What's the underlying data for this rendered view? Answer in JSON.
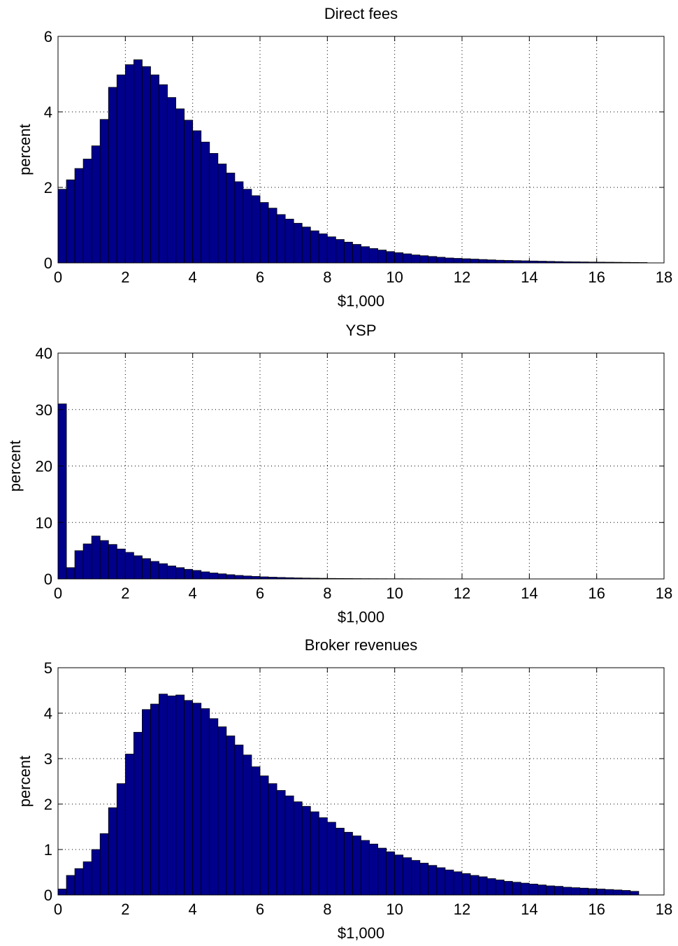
{
  "chart_data": [
    {
      "type": "bar",
      "title": "Direct fees",
      "xlabel": "$1,000",
      "ylabel": "percent",
      "xlim": [
        0,
        18
      ],
      "ylim": [
        0,
        6
      ],
      "xticks": [
        0,
        2,
        4,
        6,
        8,
        10,
        12,
        14,
        16,
        18
      ],
      "yticks": [
        0,
        2,
        4,
        6
      ],
      "grid": true,
      "bin_width": 0.25,
      "bar_color": "#00008b",
      "x": [
        0,
        0.25,
        0.5,
        0.75,
        1,
        1.25,
        1.5,
        1.75,
        2,
        2.25,
        2.5,
        2.75,
        3,
        3.25,
        3.5,
        3.75,
        4,
        4.25,
        4.5,
        4.75,
        5,
        5.25,
        5.5,
        5.75,
        6,
        6.25,
        6.5,
        6.75,
        7,
        7.25,
        7.5,
        7.75,
        8,
        8.25,
        8.5,
        8.75,
        9,
        9.25,
        9.5,
        9.75,
        10,
        10.25,
        10.5,
        10.75,
        11,
        11.25,
        11.5,
        11.75,
        12,
        12.25,
        12.5,
        12.75,
        13,
        13.25,
        13.5,
        13.75,
        14,
        14.25,
        14.5,
        14.75,
        15,
        15.25,
        15.5,
        15.75,
        16,
        16.25,
        16.5,
        16.75,
        17,
        17.25
      ],
      "values": [
        1.95,
        2.2,
        2.5,
        2.75,
        3.1,
        3.8,
        4.65,
        4.98,
        5.25,
        5.38,
        5.2,
        4.98,
        4.72,
        4.38,
        4.08,
        3.78,
        3.5,
        3.2,
        2.9,
        2.62,
        2.38,
        2.15,
        1.95,
        1.78,
        1.6,
        1.45,
        1.28,
        1.16,
        1.05,
        0.95,
        0.85,
        0.77,
        0.69,
        0.62,
        0.55,
        0.49,
        0.43,
        0.38,
        0.34,
        0.3,
        0.27,
        0.24,
        0.21,
        0.19,
        0.17,
        0.15,
        0.13,
        0.12,
        0.11,
        0.1,
        0.09,
        0.08,
        0.07,
        0.065,
        0.06,
        0.055,
        0.05,
        0.045,
        0.04,
        0.035,
        0.03,
        0.028,
        0.025,
        0.022,
        0.02,
        0.018,
        0.016,
        0.014,
        0.012,
        0.01
      ]
    },
    {
      "type": "bar",
      "title": "YSP",
      "xlabel": "$1,000",
      "ylabel": "percent",
      "xlim": [
        0,
        18
      ],
      "ylim": [
        0,
        40
      ],
      "xticks": [
        0,
        2,
        4,
        6,
        8,
        10,
        12,
        14,
        16,
        18
      ],
      "yticks": [
        0,
        10,
        20,
        30,
        40
      ],
      "grid": true,
      "bin_width": 0.25,
      "bar_color": "#00008b",
      "x": [
        0,
        0.25,
        0.5,
        0.75,
        1,
        1.25,
        1.5,
        1.75,
        2,
        2.25,
        2.5,
        2.75,
        3,
        3.25,
        3.5,
        3.75,
        4,
        4.25,
        4.5,
        4.75,
        5,
        5.25,
        5.5,
        5.75,
        6,
        6.25,
        6.5,
        6.75,
        7,
        7.25,
        7.5,
        7.75,
        8,
        8.25,
        8.5,
        8.75,
        9,
        9.25,
        9.5,
        9.75,
        10,
        10.25,
        10.5,
        10.75,
        11,
        11.25,
        11.5,
        11.75,
        12,
        12.25,
        12.5,
        12.75,
        13,
        13.25,
        13.5,
        13.75,
        14,
        14.25,
        14.5,
        14.75,
        15,
        15.25,
        15.5,
        15.75,
        16,
        16.25,
        16.5,
        16.75,
        17,
        17.25
      ],
      "values": [
        31,
        2,
        5,
        6.2,
        7.6,
        6.8,
        6.1,
        5.3,
        4.7,
        4.1,
        3.6,
        3.1,
        2.7,
        2.3,
        2.0,
        1.7,
        1.5,
        1.25,
        1.05,
        0.9,
        0.75,
        0.62,
        0.52,
        0.44,
        0.37,
        0.31,
        0.26,
        0.22,
        0.18,
        0.15,
        0.13,
        0.11,
        0.09,
        0.08,
        0.07,
        0.06,
        0.05,
        0.045,
        0.04,
        0.035,
        0.03,
        0.027,
        0.024,
        0.021,
        0.018,
        0.016,
        0.014,
        0.012,
        0.011,
        0.01,
        0.009,
        0.008,
        0.007,
        0.006,
        0.006,
        0.005,
        0.005,
        0.004,
        0.004,
        0.003,
        0.003,
        0.003,
        0.002,
        0.002,
        0.002,
        0.002,
        0.001,
        0.001,
        0.001,
        0.001
      ]
    },
    {
      "type": "bar",
      "title": "Broker revenues",
      "xlabel": "$1,000",
      "ylabel": "percent",
      "xlim": [
        0,
        18
      ],
      "ylim": [
        0,
        5
      ],
      "xticks": [
        0,
        2,
        4,
        6,
        8,
        10,
        12,
        14,
        16,
        18
      ],
      "yticks": [
        0,
        1,
        2,
        3,
        4,
        5
      ],
      "grid": true,
      "bin_width": 0.25,
      "bar_color": "#00008b",
      "x": [
        0,
        0.25,
        0.5,
        0.75,
        1,
        1.25,
        1.5,
        1.75,
        2,
        2.25,
        2.5,
        2.75,
        3,
        3.25,
        3.5,
        3.75,
        4,
        4.25,
        4.5,
        4.75,
        5,
        5.25,
        5.5,
        5.75,
        6,
        6.25,
        6.5,
        6.75,
        7,
        7.25,
        7.5,
        7.75,
        8,
        8.25,
        8.5,
        8.75,
        9,
        9.25,
        9.5,
        9.75,
        10,
        10.25,
        10.5,
        10.75,
        11,
        11.25,
        11.5,
        11.75,
        12,
        12.25,
        12.5,
        12.75,
        13,
        13.25,
        13.5,
        13.75,
        14,
        14.25,
        14.5,
        14.75,
        15,
        15.25,
        15.5,
        15.75,
        16,
        16.25,
        16.5,
        16.75,
        17
      ],
      "values": [
        0.13,
        0.43,
        0.58,
        0.73,
        1.0,
        1.35,
        1.92,
        2.45,
        3.1,
        3.58,
        4.08,
        4.2,
        4.42,
        4.38,
        4.4,
        4.28,
        4.22,
        4.1,
        3.88,
        3.7,
        3.5,
        3.3,
        3.08,
        2.82,
        2.62,
        2.45,
        2.3,
        2.18,
        2.05,
        1.95,
        1.83,
        1.7,
        1.6,
        1.47,
        1.38,
        1.3,
        1.2,
        1.12,
        1.03,
        0.95,
        0.88,
        0.82,
        0.76,
        0.7,
        0.65,
        0.6,
        0.55,
        0.51,
        0.47,
        0.43,
        0.4,
        0.36,
        0.33,
        0.3,
        0.28,
        0.26,
        0.24,
        0.22,
        0.2,
        0.19,
        0.17,
        0.16,
        0.15,
        0.14,
        0.13,
        0.12,
        0.11,
        0.1,
        0.08
      ]
    }
  ]
}
